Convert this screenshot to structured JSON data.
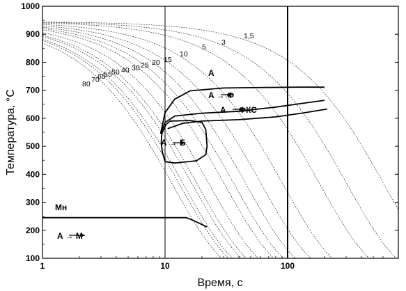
{
  "chart_data": {
    "type": "line",
    "title": "",
    "xlabel": "Время, с",
    "ylabel": "Температура, °C",
    "xscale": "log",
    "xlim": [
      1,
      600
    ],
    "ylim": [
      100,
      1000
    ],
    "x_ticks": [
      "1",
      "10",
      "100"
    ],
    "y_ticks": [
      "100",
      "200",
      "300",
      "400",
      "500",
      "600",
      "700",
      "800",
      "900",
      "1000"
    ],
    "grid": false,
    "reference_lines_x": [
      10,
      100
    ],
    "cooling_curves": {
      "start_temperature": 945,
      "rates": [
        80,
        70,
        65,
        55,
        50,
        40,
        30,
        25,
        20,
        15,
        10,
        5,
        3,
        1.5
      ],
      "labels": [
        "80",
        "70",
        "65",
        "55",
        "50",
        "40",
        "30",
        "25",
        "20",
        "15",
        "10",
        "5",
        "3",
        "1,5"
      ]
    },
    "transformation_curves": [
      {
        "name": "A→Ф start",
        "points": [
          [
            9.2,
            545
          ],
          [
            10,
            620
          ],
          [
            12,
            668
          ],
          [
            16,
            698
          ],
          [
            30,
            708
          ],
          [
            70,
            710
          ],
          [
            120,
            711
          ],
          [
            200,
            711
          ]
        ]
      },
      {
        "name": "A→ФКС start",
        "points": [
          [
            9.2,
            545
          ],
          [
            10,
            585
          ],
          [
            12,
            608
          ],
          [
            20,
            618
          ],
          [
            40,
            625
          ],
          [
            80,
            640
          ],
          [
            130,
            653
          ],
          [
            200,
            664
          ]
        ]
      },
      {
        "name": "A→ФКС end",
        "points": [
          [
            10.5,
            563
          ],
          [
            14,
            582
          ],
          [
            20,
            590
          ],
          [
            40,
            595
          ],
          [
            80,
            605
          ],
          [
            130,
            618
          ],
          [
            210,
            633
          ]
        ]
      },
      {
        "name": "A→Б",
        "points": [
          [
            11,
            590
          ],
          [
            16,
            592
          ],
          [
            20,
            585
          ],
          [
            21.5,
            560
          ],
          [
            22,
            500
          ],
          [
            21.5,
            470
          ],
          [
            18,
            448
          ],
          [
            12,
            440
          ],
          [
            10,
            445
          ],
          [
            9.5,
            480
          ],
          [
            9.3,
            510
          ],
          [
            9.4,
            545
          ],
          [
            10.2,
            578
          ],
          [
            11,
            590
          ]
        ]
      },
      {
        "name": "Mн",
        "points": [
          [
            1,
            245
          ],
          [
            15,
            245
          ],
          [
            17,
            235
          ],
          [
            19,
            225
          ],
          [
            22,
            212
          ]
        ]
      }
    ],
    "annotations": {
      "austenite": "A",
      "ferrite": "A → Ф",
      "ferrite_carbide": "A → ФКС",
      "bainite": "A → Б",
      "ms": "Mн",
      "martensite": "A → M"
    }
  }
}
